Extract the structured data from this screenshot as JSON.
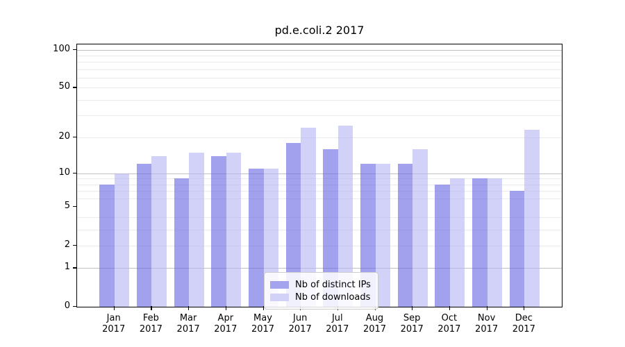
{
  "figure": {
    "title": "pd.e.coli.2 2017",
    "background": "#ffffff"
  },
  "chart_data": {
    "type": "bar",
    "title": "pd.e.coli.2 2017",
    "xlabel": "",
    "ylabel": "",
    "categories": [
      "Jan 2017",
      "Feb 2017",
      "Mar 2017",
      "Apr 2017",
      "May 2017",
      "Jun 2017",
      "Jul 2017",
      "Aug 2017",
      "Sep 2017",
      "Oct 2017",
      "Nov 2017",
      "Dec 2017"
    ],
    "x_months": [
      "Jan",
      "Feb",
      "Mar",
      "Apr",
      "May",
      "Jun",
      "Jul",
      "Aug",
      "Sep",
      "Oct",
      "Nov",
      "Dec"
    ],
    "x_year": "2017",
    "series": [
      {
        "name": "Nb of distinct IPs",
        "color": "rgba(104,104,228,0.62)",
        "legend_color": "#a4a4ee",
        "values": [
          8,
          12,
          9,
          14,
          11,
          18,
          16,
          12,
          12,
          8,
          9,
          7
        ]
      },
      {
        "name": "Nb of downloads",
        "color": "rgba(183,183,246,0.62)",
        "legend_color": "#d2d2f9",
        "values": [
          10,
          14,
          15,
          15,
          11,
          24,
          25,
          12,
          16,
          9,
          9,
          23
        ]
      }
    ],
    "y_axis": {
      "scale": "log1p",
      "ylim": [
        0,
        110
      ],
      "tick_values": [
        0,
        1,
        2,
        5,
        10,
        20,
        50,
        100
      ],
      "tick_labels": [
        "0",
        "1",
        "2",
        "5",
        "10",
        "20",
        "50",
        "100"
      ],
      "major_grid_values": [
        1,
        10,
        100
      ],
      "minor_grid_values": [
        2,
        3,
        4,
        6,
        7,
        8,
        9,
        20,
        30,
        40,
        50,
        60,
        70,
        80,
        90
      ]
    },
    "grid": true,
    "legend_position": "lower center"
  },
  "legend": {
    "entries": [
      "Nb of distinct IPs",
      "Nb of downloads"
    ]
  },
  "colors": {
    "grid_major": "#c0c0c0",
    "grid_minor": "#eaeaea",
    "spine": "#000000",
    "bar_ips": "rgba(104,104,228,0.62)",
    "bar_downloads": "rgba(183,183,246,0.62)"
  }
}
